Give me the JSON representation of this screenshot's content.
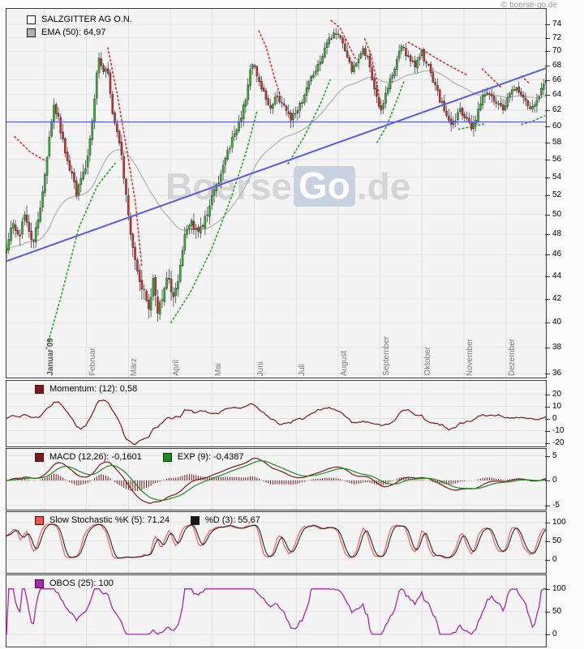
{
  "page": {
    "copyright": "© boerse-go.de",
    "watermark": {
      "part1": "Boerse",
      "part2": "Go",
      "part3": ".de"
    }
  },
  "chart_data": {
    "type": "candlestick",
    "title": "SALZGITTER AG O.N.",
    "num_candles": 240,
    "y_axis": {
      "scale": "log",
      "min": 35.7,
      "max": 76.4,
      "ticks": [
        74,
        72,
        70,
        68,
        66,
        64,
        62,
        60,
        58,
        56,
        54,
        52,
        50,
        48,
        46,
        44,
        42,
        40,
        38,
        36
      ]
    },
    "x_axis": {
      "month_labels": [
        "Januar 09",
        "Februar",
        "März",
        "April",
        "Mai",
        "Juni",
        "Juli",
        "August",
        "September",
        "Oktober",
        "November",
        "Dezember"
      ]
    },
    "main_legend": [
      {
        "label": "SALZGITTER AG O.N.",
        "swatch": "#ffffff"
      },
      {
        "label": "EMA (50): 64,97",
        "swatch": "#b0b0b0"
      }
    ],
    "candle_colors": {
      "up": "#2eb42e",
      "down": "#d22f2f",
      "wick": "#2a2a2a"
    },
    "close_keypoints": [
      [
        0.0,
        46.5
      ],
      [
        0.01,
        49.3
      ],
      [
        0.022,
        47.6
      ],
      [
        0.034,
        49.8
      ],
      [
        0.048,
        47.2
      ],
      [
        0.062,
        50.5
      ],
      [
        0.075,
        56.0
      ],
      [
        0.088,
        63.0
      ],
      [
        0.096,
        60.8
      ],
      [
        0.106,
        57.5
      ],
      [
        0.118,
        54.8
      ],
      [
        0.13,
        52.2
      ],
      [
        0.142,
        54.2
      ],
      [
        0.152,
        56.5
      ],
      [
        0.162,
        62.5
      ],
      [
        0.17,
        69.3
      ],
      [
        0.179,
        67.2
      ],
      [
        0.187,
        67.8
      ],
      [
        0.196,
        62.0
      ],
      [
        0.208,
        58.5
      ],
      [
        0.218,
        54.0
      ],
      [
        0.228,
        49.0
      ],
      [
        0.24,
        45.0
      ],
      [
        0.252,
        43.0
      ],
      [
        0.263,
        41.3
      ],
      [
        0.272,
        43.5
      ],
      [
        0.281,
        40.8
      ],
      [
        0.291,
        42.5
      ],
      [
        0.299,
        44.6
      ],
      [
        0.308,
        42.0
      ],
      [
        0.318,
        43.5
      ],
      [
        0.33,
        47.5
      ],
      [
        0.342,
        49.3
      ],
      [
        0.355,
        48.2
      ],
      [
        0.368,
        49.5
      ],
      [
        0.38,
        51.5
      ],
      [
        0.393,
        53.5
      ],
      [
        0.406,
        56.0
      ],
      [
        0.42,
        58.5
      ],
      [
        0.432,
        60.5
      ],
      [
        0.443,
        63.5
      ],
      [
        0.452,
        67.0
      ],
      [
        0.458,
        68.8
      ],
      [
        0.466,
        66.5
      ],
      [
        0.477,
        64.0
      ],
      [
        0.488,
        61.8
      ],
      [
        0.5,
        63.8
      ],
      [
        0.512,
        62.5
      ],
      [
        0.525,
        60.8
      ],
      [
        0.538,
        62.0
      ],
      [
        0.55,
        63.5
      ],
      [
        0.562,
        65.5
      ],
      [
        0.575,
        68.0
      ],
      [
        0.588,
        70.0
      ],
      [
        0.6,
        72.0
      ],
      [
        0.61,
        73.2
      ],
      [
        0.62,
        71.5
      ],
      [
        0.63,
        69.0
      ],
      [
        0.642,
        67.2
      ],
      [
        0.654,
        69.5
      ],
      [
        0.662,
        70.8
      ],
      [
        0.672,
        68.0
      ],
      [
        0.682,
        64.5
      ],
      [
        0.692,
        61.8
      ],
      [
        0.703,
        64.0
      ],
      [
        0.714,
        66.5
      ],
      [
        0.724,
        68.8
      ],
      [
        0.734,
        70.5
      ],
      [
        0.745,
        69.0
      ],
      [
        0.756,
        68.0
      ],
      [
        0.768,
        70.0
      ],
      [
        0.778,
        68.5
      ],
      [
        0.79,
        66.0
      ],
      [
        0.802,
        63.5
      ],
      [
        0.815,
        61.5
      ],
      [
        0.828,
        60.2
      ],
      [
        0.84,
        62.0
      ],
      [
        0.852,
        61.0
      ],
      [
        0.862,
        59.5
      ],
      [
        0.872,
        61.5
      ],
      [
        0.882,
        63.5
      ],
      [
        0.895,
        64.5
      ],
      [
        0.908,
        63.0
      ],
      [
        0.92,
        61.8
      ],
      [
        0.932,
        64.0
      ],
      [
        0.944,
        65.2
      ],
      [
        0.956,
        64.0
      ],
      [
        0.968,
        62.8
      ],
      [
        0.98,
        62.3
      ],
      [
        0.99,
        64.2
      ],
      [
        1.0,
        65.8
      ]
    ],
    "overlays": {
      "ema_period": 50,
      "ema_color": "#b8b8b8",
      "support_line_price": 60.5,
      "trendline": {
        "from": [
          0.0,
          45.4
        ],
        "to": [
          1.0,
          67.6
        ]
      },
      "line_color": "#5a5af0",
      "sar_red_color": "#e83333",
      "sar_green_color": "#2ea82e",
      "sar_red": [
        [
          [
            0.015,
            58.7
          ],
          [
            0.045,
            56.8
          ],
          [
            0.074,
            55.8
          ]
        ],
        [
          [
            0.188,
            70.5
          ],
          [
            0.206,
            63.8
          ],
          [
            0.224,
            56.7
          ],
          [
            0.239,
            51.3
          ],
          [
            0.251,
            44.8
          ]
        ],
        [
          [
            0.468,
            73.0
          ],
          [
            0.482,
            70.5
          ],
          [
            0.496,
            66.5
          ],
          [
            0.508,
            63.8
          ]
        ],
        [
          [
            0.602,
            74.6
          ],
          [
            0.618,
            73.5
          ],
          [
            0.634,
            71.0
          ],
          [
            0.648,
            68.8
          ]
        ],
        [
          [
            0.664,
            71.8
          ],
          [
            0.676,
            69.5
          ],
          [
            0.686,
            66.0
          ],
          [
            0.694,
            62.0
          ]
        ],
        [
          [
            0.745,
            71.3
          ],
          [
            0.78,
            69.8
          ],
          [
            0.815,
            68.2
          ],
          [
            0.855,
            66.6
          ]
        ],
        [
          [
            0.882,
            67.5
          ],
          [
            0.9,
            66.2
          ],
          [
            0.918,
            64.9
          ]
        ],
        [
          [
            0.955,
            66.5
          ],
          [
            0.968,
            65.6
          ]
        ]
      ],
      "sar_green": [
        [
          [
            0.074,
            37.9
          ],
          [
            0.1,
            42.0
          ],
          [
            0.134,
            48.6
          ],
          [
            0.168,
            53.0
          ],
          [
            0.202,
            55.6
          ]
        ],
        [
          [
            0.305,
            40.0
          ],
          [
            0.34,
            42.5
          ],
          [
            0.38,
            46.5
          ],
          [
            0.415,
            51.5
          ],
          [
            0.445,
            57.0
          ],
          [
            0.465,
            62.0
          ]
        ],
        [
          [
            0.522,
            55.5
          ],
          [
            0.552,
            58.7
          ],
          [
            0.582,
            62.8
          ],
          [
            0.6,
            66.0
          ]
        ],
        [
          [
            0.687,
            58.0
          ],
          [
            0.705,
            60.0
          ],
          [
            0.725,
            63.5
          ],
          [
            0.738,
            66.0
          ]
        ],
        [
          [
            0.838,
            59.6
          ],
          [
            0.862,
            59.9
          ],
          [
            0.888,
            60.3
          ]
        ],
        [
          [
            0.955,
            60.2
          ],
          [
            0.975,
            60.6
          ],
          [
            0.998,
            61.3
          ]
        ]
      ]
    },
    "indicator_panels": [
      {
        "id": "momentum",
        "indicator": "momentum",
        "period": 12,
        "color": "#7a1a1a",
        "legend": [
          {
            "label": "Momentum: (12): 0,58",
            "swatch": "#7a1a1a"
          }
        ],
        "ticks": [
          20,
          10,
          0,
          -10,
          -20
        ],
        "min": -23,
        "max": 31
      },
      {
        "id": "macd",
        "indicator": "macd",
        "params": [
          12,
          26,
          9
        ],
        "color": "#7a1a1a",
        "signal_color": "#1e8a1e",
        "hist_color": "#7a1515",
        "legend": [
          {
            "label": "MACD (12,26): -0,1601",
            "swatch": "#7a1a1a"
          },
          {
            "label": "EXP (9): -0,4387",
            "swatch": "#1e8a1e"
          }
        ],
        "ticks": [
          5,
          0,
          -5
        ],
        "min": -5.9,
        "max": 6.4
      },
      {
        "id": "stochastic",
        "indicator": "stochastic",
        "params": [
          5,
          3
        ],
        "color": "#ef6a6a",
        "signal_color": "#161616",
        "legend": [
          {
            "label": "Slow Stochastic %K (5): 71,24",
            "swatch": "#e85555"
          },
          {
            "label": "%D (3): 55,67",
            "swatch": "#161616"
          }
        ],
        "ticks": [
          100,
          50,
          0
        ],
        "min": -35,
        "max": 128
      },
      {
        "id": "obos",
        "indicator": "obos",
        "period": 25,
        "color": "#a82aa8",
        "legend": [
          {
            "label": "OBOS (25): 100",
            "swatch": "#a82aa8"
          }
        ],
        "ticks": [
          100,
          50,
          0
        ],
        "min": -27,
        "max": 130
      }
    ]
  }
}
